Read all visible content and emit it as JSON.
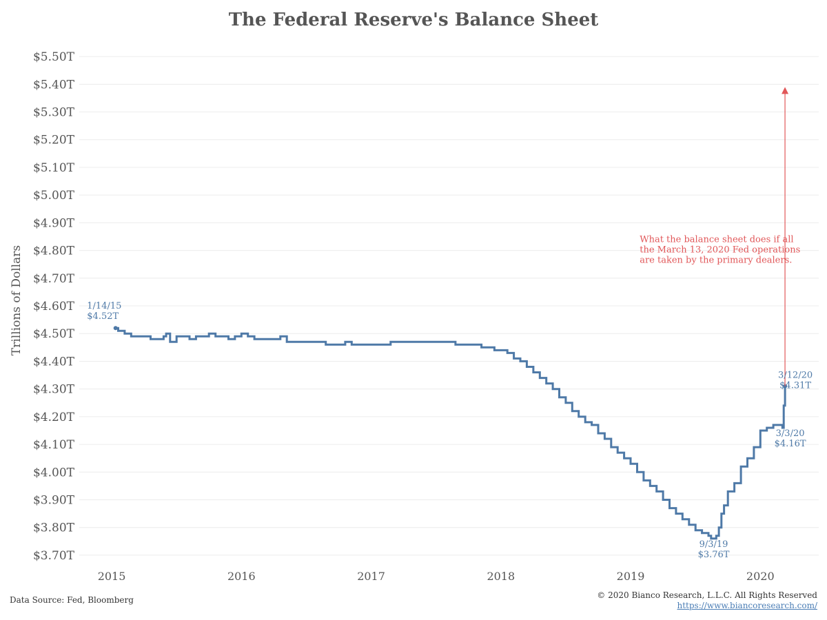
{
  "chart_data": {
    "type": "line",
    "title": "The Federal Reserve's Balance Sheet",
    "ylabel": "Trillions of Dollars",
    "xlabel": "",
    "ylim": [
      3.67,
      5.55
    ],
    "xlim": [
      2014.75,
      2020.45
    ],
    "yticks": [
      "$3.70T",
      "$3.80T",
      "$3.90T",
      "$4.00T",
      "$4.10T",
      "$4.20T",
      "$4.30T",
      "$4.40T",
      "$4.50T",
      "$4.60T",
      "$4.70T",
      "$4.80T",
      "$4.90T",
      "$5.00T",
      "$5.10T",
      "$5.20T",
      "$5.30T",
      "$5.40T",
      "$5.50T"
    ],
    "ytick_values": [
      3.7,
      3.8,
      3.9,
      4.0,
      4.1,
      4.2,
      4.3,
      4.4,
      4.5,
      4.6,
      4.7,
      4.8,
      4.9,
      5.0,
      5.1,
      5.2,
      5.3,
      5.4,
      5.5
    ],
    "xticks": [
      "2015",
      "2016",
      "2017",
      "2018",
      "2019",
      "2020"
    ],
    "xtick_values": [
      2015,
      2016,
      2017,
      2018,
      2019,
      2020
    ],
    "grid": true,
    "series": [
      {
        "color": "#4e79a7",
        "x": [
          2015.03,
          2015.05,
          2015.1,
          2015.15,
          2015.2,
          2015.25,
          2015.3,
          2015.35,
          2015.4,
          2015.42,
          2015.45,
          2015.5,
          2015.55,
          2015.6,
          2015.65,
          2015.7,
          2015.75,
          2015.8,
          2015.85,
          2015.9,
          2015.95,
          2016.0,
          2016.05,
          2016.1,
          2016.15,
          2016.2,
          2016.25,
          2016.3,
          2016.35,
          2016.4,
          2016.45,
          2016.5,
          2016.55,
          2016.6,
          2016.65,
          2016.7,
          2016.75,
          2016.8,
          2016.85,
          2016.9,
          2016.95,
          2017.0,
          2017.05,
          2017.1,
          2017.15,
          2017.2,
          2017.25,
          2017.3,
          2017.35,
          2017.4,
          2017.45,
          2017.5,
          2017.55,
          2017.6,
          2017.65,
          2017.7,
          2017.75,
          2017.8,
          2017.85,
          2017.9,
          2017.95,
          2018.0,
          2018.05,
          2018.1,
          2018.15,
          2018.2,
          2018.25,
          2018.3,
          2018.35,
          2018.4,
          2018.45,
          2018.5,
          2018.55,
          2018.6,
          2018.65,
          2018.7,
          2018.75,
          2018.8,
          2018.85,
          2018.9,
          2018.95,
          2019.0,
          2019.05,
          2019.1,
          2019.15,
          2019.2,
          2019.25,
          2019.3,
          2019.35,
          2019.4,
          2019.45,
          2019.5,
          2019.55,
          2019.6,
          2019.62,
          2019.64,
          2019.66,
          2019.68,
          2019.7,
          2019.72,
          2019.75,
          2019.8,
          2019.85,
          2019.9,
          2019.95,
          2020.0,
          2020.05,
          2020.1,
          2020.15,
          2020.17,
          2020.18,
          2020.19
        ],
        "y": [
          4.52,
          4.51,
          4.5,
          4.49,
          4.49,
          4.49,
          4.48,
          4.48,
          4.49,
          4.5,
          4.47,
          4.49,
          4.49,
          4.48,
          4.49,
          4.49,
          4.5,
          4.49,
          4.49,
          4.48,
          4.49,
          4.5,
          4.49,
          4.48,
          4.48,
          4.48,
          4.48,
          4.49,
          4.47,
          4.47,
          4.47,
          4.47,
          4.47,
          4.47,
          4.46,
          4.46,
          4.46,
          4.47,
          4.46,
          4.46,
          4.46,
          4.46,
          4.46,
          4.46,
          4.47,
          4.47,
          4.47,
          4.47,
          4.47,
          4.47,
          4.47,
          4.47,
          4.47,
          4.47,
          4.46,
          4.46,
          4.46,
          4.46,
          4.45,
          4.45,
          4.44,
          4.44,
          4.43,
          4.41,
          4.4,
          4.38,
          4.36,
          4.34,
          4.32,
          4.3,
          4.27,
          4.25,
          4.22,
          4.2,
          4.18,
          4.17,
          4.14,
          4.12,
          4.09,
          4.07,
          4.05,
          4.03,
          4.0,
          3.97,
          3.95,
          3.93,
          3.9,
          3.87,
          3.85,
          3.83,
          3.81,
          3.79,
          3.78,
          3.77,
          3.76,
          3.76,
          3.77,
          3.8,
          3.85,
          3.88,
          3.93,
          3.96,
          4.02,
          4.05,
          4.09,
          4.15,
          4.16,
          4.17,
          4.17,
          4.16,
          4.24,
          4.31
        ]
      }
    ],
    "arrow": {
      "x": 2020.19,
      "y_from": 4.31,
      "y_to": 5.39,
      "color": "#e15759"
    },
    "annotations": [
      {
        "lines": [
          "1/14/15",
          "$4.52T"
        ],
        "color": "#4e79a7",
        "x": 2014.81,
        "y": 4.59,
        "anchor": "start"
      },
      {
        "lines": [
          "9/3/19",
          "$3.76T"
        ],
        "color": "#4e79a7",
        "x": 2019.64,
        "y": 3.73,
        "anchor": "middle"
      },
      {
        "lines": [
          "3/3/20",
          "$4.16T"
        ],
        "color": "#4e79a7",
        "x": 2020.23,
        "y": 4.13,
        "anchor": "middle"
      },
      {
        "lines": [
          "3/12/20",
          "$4.31T"
        ],
        "color": "#4e79a7",
        "x": 2020.27,
        "y": 4.34,
        "anchor": "middle"
      },
      {
        "lines": [
          "What the balance sheet does if all",
          "the March 13, 2020 Fed operations",
          "are taken by the primary dealers."
        ],
        "color": "#e15759",
        "x": 2019.07,
        "y": 4.83,
        "anchor": "start"
      }
    ]
  },
  "footer": {
    "source": "Data Source: Fed, Bloomberg",
    "copyright": "© 2020 Bianco Research, L.L.C. All Rights Reserved",
    "url": "https://www.biancoresearch.com/"
  }
}
